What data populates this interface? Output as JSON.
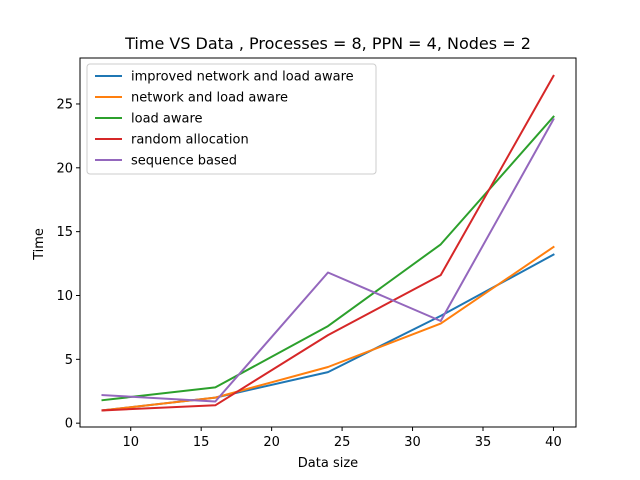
{
  "chart_data": {
    "type": "line",
    "title": "Time VS Data , Processes = 8, PPN = 4, Nodes = 2",
    "xlabel": "Data size",
    "ylabel": "Time",
    "xlim": [
      6.4,
      41.6
    ],
    "ylim": [
      -0.3,
      28.6
    ],
    "xticks": [
      10,
      15,
      20,
      25,
      30,
      35,
      40
    ],
    "yticks": [
      0,
      5,
      10,
      15,
      20,
      25
    ],
    "x": [
      8,
      16,
      24,
      32,
      40
    ],
    "grid": false,
    "legend_position": "top-left",
    "series": [
      {
        "name": "improved network and load aware",
        "color": "#1f77b4",
        "values": [
          1.0,
          2.0,
          4.0,
          8.4,
          13.2
        ]
      },
      {
        "name": "network and load aware",
        "color": "#ff7f0e",
        "values": [
          1.0,
          2.0,
          4.4,
          7.8,
          13.8
        ]
      },
      {
        "name": "load aware",
        "color": "#2ca02c",
        "values": [
          1.8,
          2.8,
          7.6,
          14.0,
          24.0
        ]
      },
      {
        "name": "random allocation",
        "color": "#d62728",
        "values": [
          1.0,
          1.4,
          6.9,
          11.6,
          27.2
        ]
      },
      {
        "name": "sequence based",
        "color": "#9467bd",
        "values": [
          2.2,
          1.7,
          11.8,
          8.0,
          23.8
        ]
      }
    ]
  }
}
